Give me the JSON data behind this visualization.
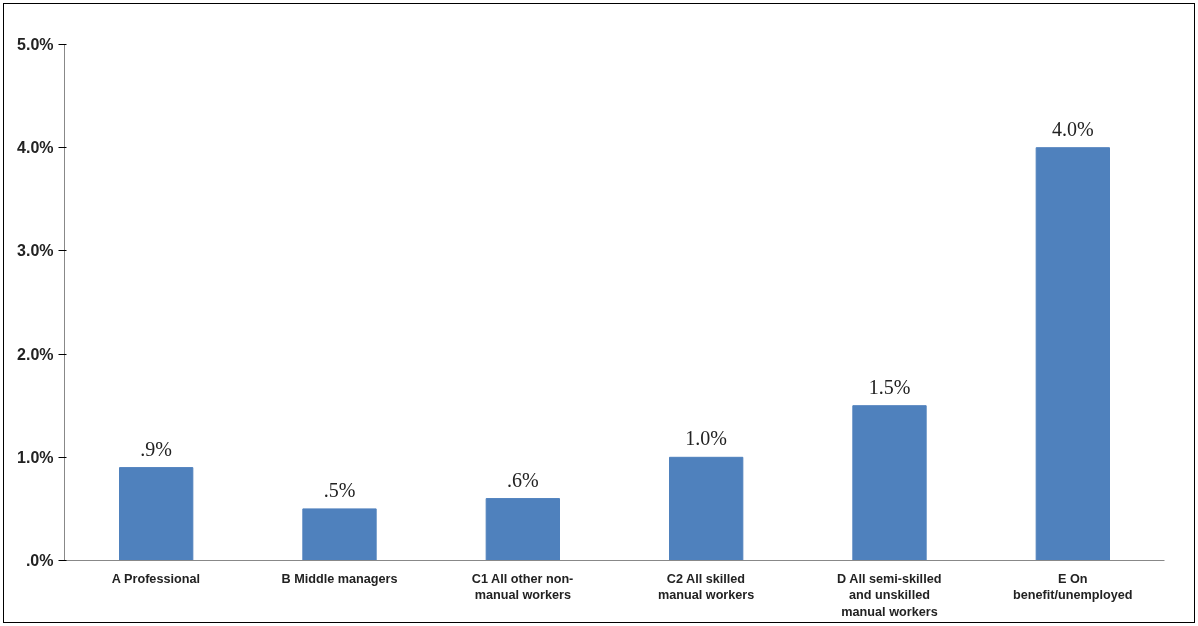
{
  "chart_data": {
    "type": "bar",
    "categories": [
      "A Professional",
      "B Middle managers",
      "C1 All other non-manual workers",
      "C2 All skilled manual workers",
      "D All semi-skilled and unskilled manual workers",
      "E On benefit/unemployed"
    ],
    "values": [
      0.9,
      0.5,
      0.6,
      1.0,
      1.5,
      4.0
    ],
    "value_labels": [
      ".9%",
      ".5%",
      ".6%",
      "1.0%",
      "1.5%",
      "4.0%"
    ],
    "color": "#4f81bd",
    "ylim": [
      0,
      5
    ],
    "yticks": [
      {
        "value": 0,
        "label": ".0%"
      },
      {
        "value": 1,
        "label": "1.0%"
      },
      {
        "value": 2,
        "label": "2.0%"
      },
      {
        "value": 3,
        "label": "3.0%"
      },
      {
        "value": 4,
        "label": "4.0%"
      },
      {
        "value": 5,
        "label": "5.0%"
      }
    ],
    "grid": false
  }
}
